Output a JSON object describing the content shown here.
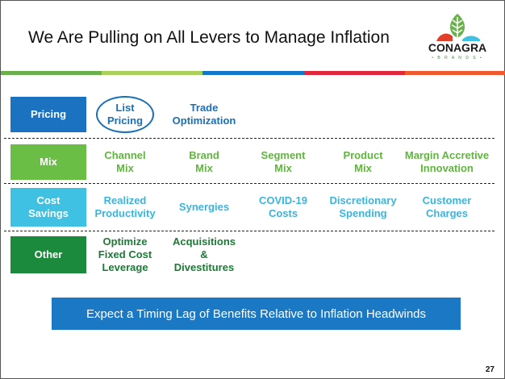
{
  "title": "We Are Pulling on All Levers to Manage Inflation",
  "logo": {
    "word": "CONAGRA",
    "sub": "• B R A N D S •"
  },
  "colors": {
    "bar": [
      "#6ab04c",
      "#a8d05a",
      "#1478c8",
      "#e0283a",
      "#f05a30"
    ],
    "pricing": "#1a72c0",
    "mix": "#6abd45",
    "cost": "#3ec1e3",
    "other": "#1b8a3c"
  },
  "rows": [
    {
      "label": "Pricing",
      "items": [
        "List\nPricing",
        "Trade\nOptimization"
      ]
    },
    {
      "label": "Mix",
      "items": [
        "Channel\nMix",
        "Brand\nMix",
        "Segment\nMix",
        "Product\nMix",
        "Margin Accretive\nInnovation"
      ]
    },
    {
      "label": "Cost\nSavings",
      "items": [
        "Realized\nProductivity",
        "Synergies",
        "COVID-19\nCosts",
        "Discretionary\nSpending",
        "Customer\nCharges"
      ]
    },
    {
      "label": "Other",
      "items": [
        "Optimize\nFixed Cost\nLeverage",
        "Acquisitions\n&\nDivestitures"
      ]
    }
  ],
  "banner": "Expect a Timing Lag of Benefits Relative to Inflation Headwinds",
  "page_number": "27"
}
